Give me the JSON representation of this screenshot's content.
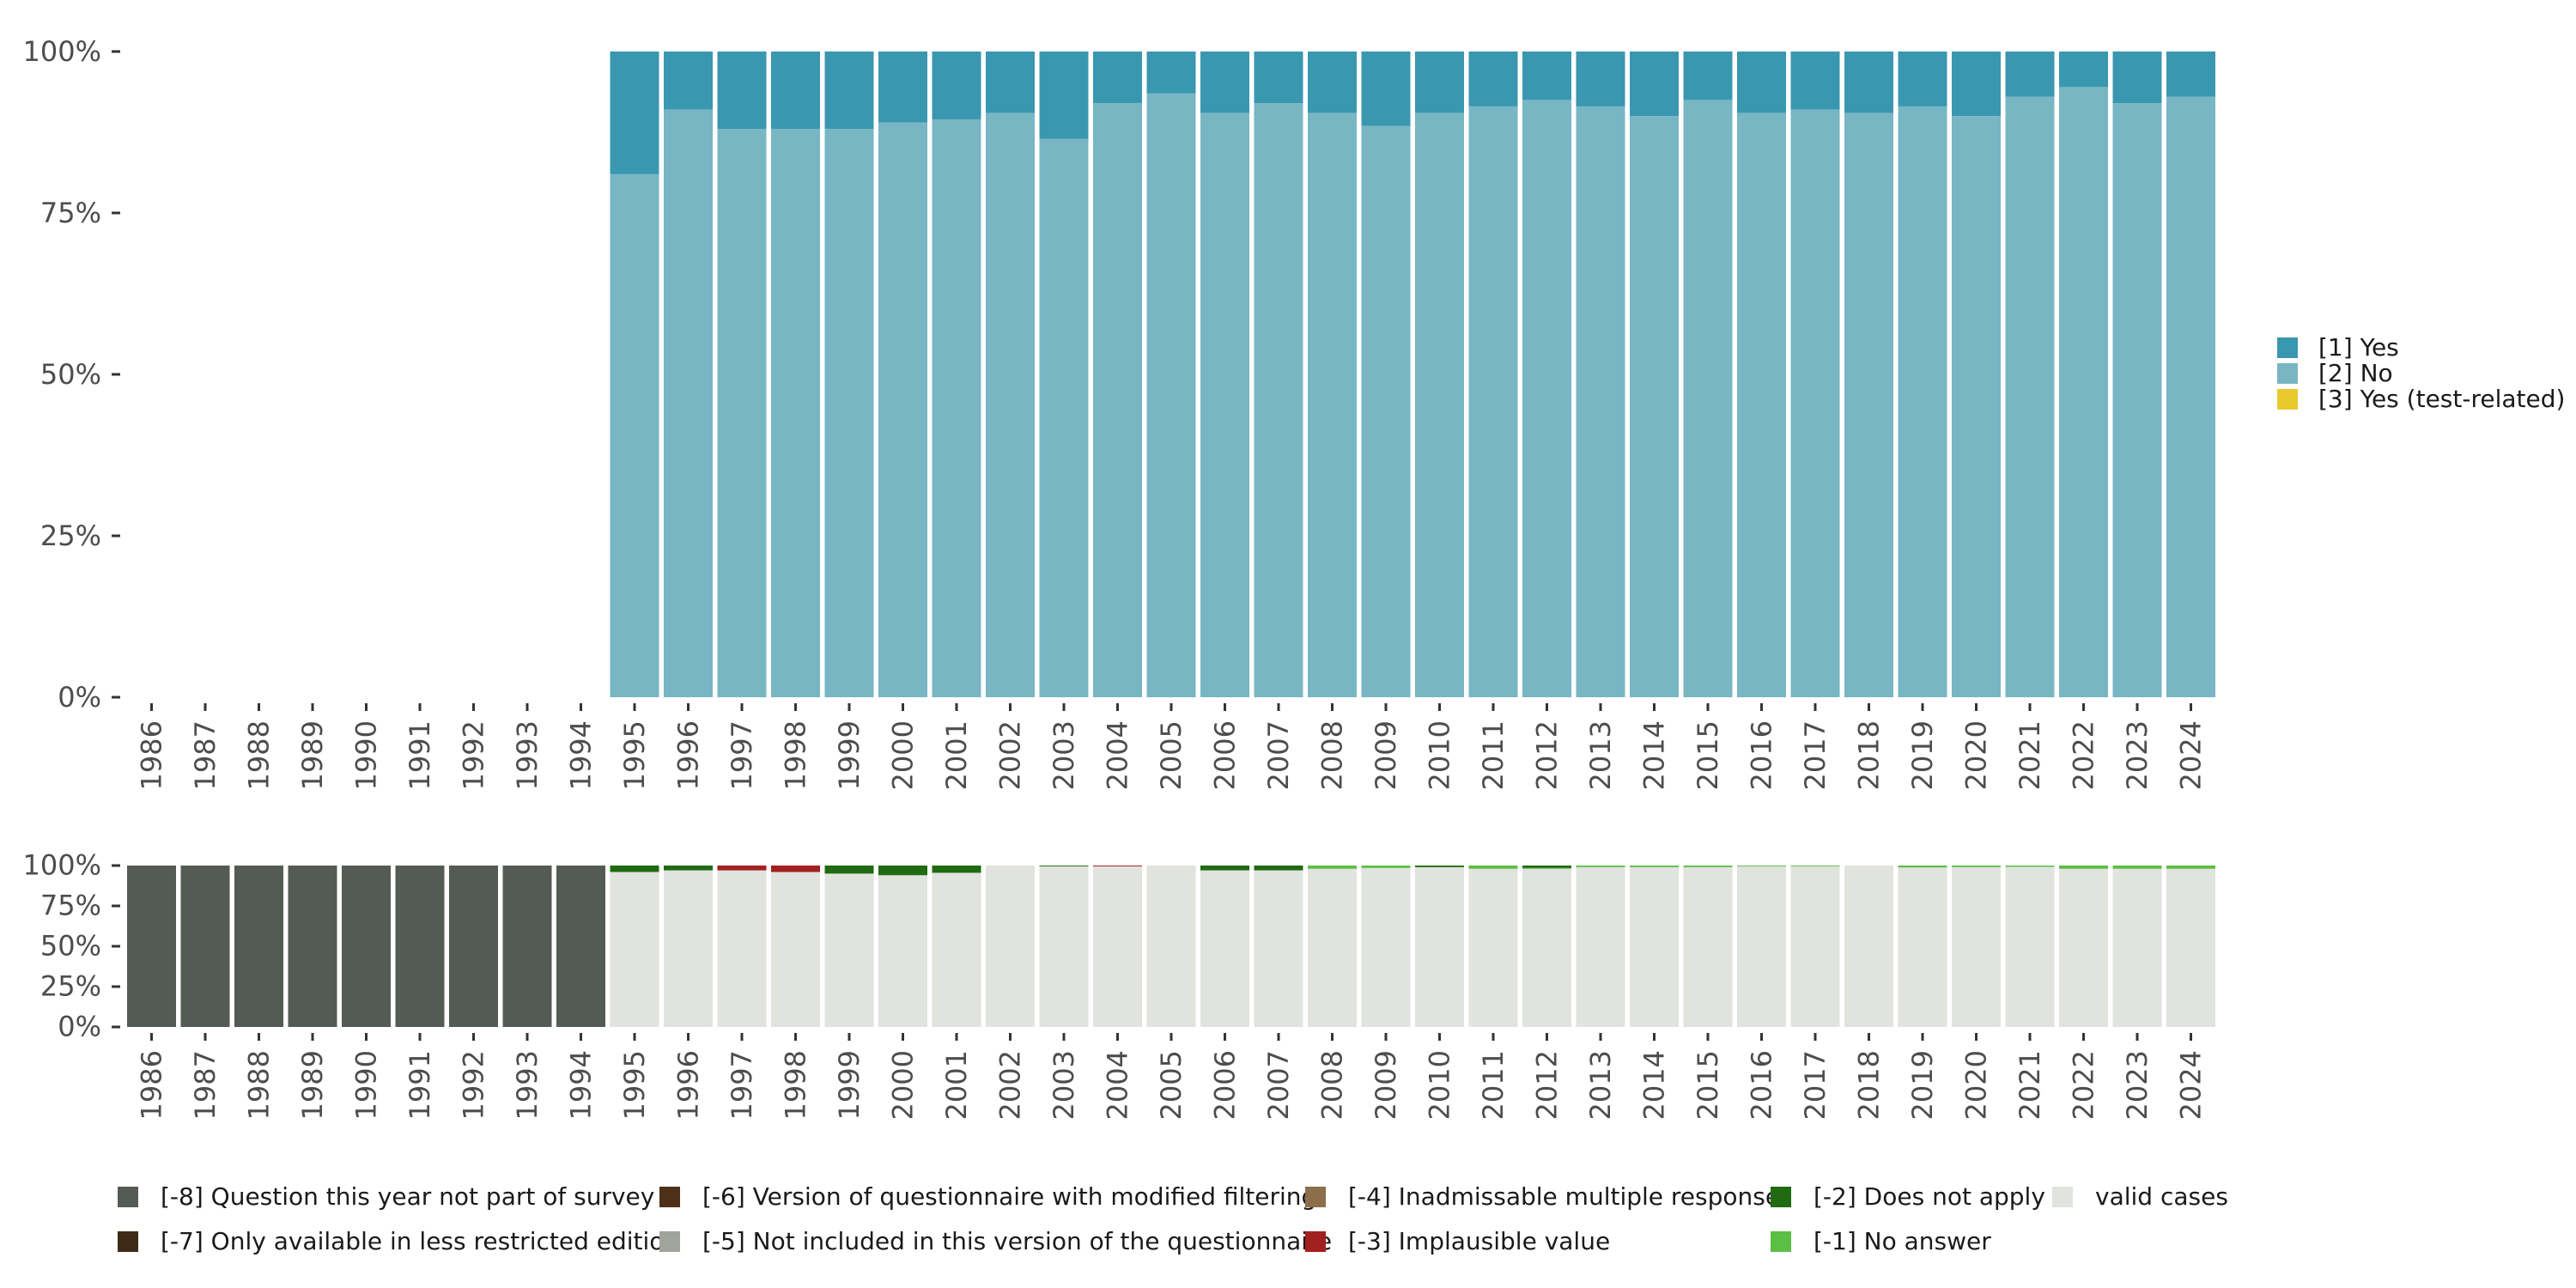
{
  "chart_data": [
    {
      "name": "main",
      "type": "bar",
      "stacked": true,
      "title": "",
      "xlabel": "",
      "ylabel": "",
      "ylim": [
        0,
        100
      ],
      "y_ticks": [
        "0%",
        "25%",
        "50%",
        "75%",
        "100%"
      ],
      "categories": [
        "1986",
        "1987",
        "1988",
        "1989",
        "1990",
        "1991",
        "1992",
        "1993",
        "1994",
        "1995",
        "1996",
        "1997",
        "1998",
        "1999",
        "2000",
        "2001",
        "2002",
        "2003",
        "2004",
        "2005",
        "2006",
        "2007",
        "2008",
        "2009",
        "2010",
        "2011",
        "2012",
        "2013",
        "2014",
        "2015",
        "2016",
        "2017",
        "2018",
        "2019",
        "2020",
        "2021",
        "2022",
        "2023",
        "2024"
      ],
      "series": [
        {
          "name": "[2] No",
          "color": "#78b6c4",
          "values": [
            null,
            null,
            null,
            null,
            null,
            null,
            null,
            null,
            null,
            81,
            91,
            88,
            88,
            88,
            89,
            89.5,
            90.5,
            86.5,
            92,
            93.5,
            90.5,
            92,
            90.5,
            88.5,
            90.5,
            91.5,
            92.5,
            91.5,
            90,
            92.5,
            90.5,
            91,
            90.5,
            91.5,
            90,
            93,
            94.5,
            92,
            93
          ]
        },
        {
          "name": "[1] Yes",
          "color": "#3a97b0",
          "values": [
            null,
            null,
            null,
            null,
            null,
            null,
            null,
            null,
            null,
            19,
            9,
            12,
            12,
            12,
            11,
            10.5,
            9.5,
            13.5,
            8,
            6.5,
            9.5,
            8,
            9.5,
            11.5,
            9.5,
            8.5,
            7.5,
            8.5,
            10,
            7.5,
            9.5,
            9,
            9.5,
            8.5,
            10,
            7,
            5.5,
            8,
            7
          ]
        },
        {
          "name": "[3] Yes (test-related)",
          "color": "#e8c92c",
          "values": [
            null,
            null,
            null,
            null,
            null,
            null,
            null,
            null,
            null,
            0,
            0,
            0,
            0,
            0,
            0,
            0,
            0,
            0,
            0,
            0,
            0,
            0,
            0,
            0,
            0,
            0,
            0,
            0,
            0,
            0,
            0,
            0,
            0,
            0,
            0,
            0,
            0,
            0,
            0
          ]
        }
      ],
      "legend": [
        "[1] Yes",
        "[2] No",
        "[3] Yes (test-related)"
      ],
      "legend_position": "right"
    },
    {
      "name": "missing",
      "type": "bar",
      "stacked": true,
      "title": "",
      "xlabel": "",
      "ylabel": "",
      "ylim": [
        0,
        100
      ],
      "y_ticks": [
        "0%",
        "25%",
        "50%",
        "75%",
        "100%"
      ],
      "categories": [
        "1986",
        "1987",
        "1988",
        "1989",
        "1990",
        "1991",
        "1992",
        "1993",
        "1994",
        "1995",
        "1996",
        "1997",
        "1998",
        "1999",
        "2000",
        "2001",
        "2002",
        "2003",
        "2004",
        "2005",
        "2006",
        "2007",
        "2008",
        "2009",
        "2010",
        "2011",
        "2012",
        "2013",
        "2014",
        "2015",
        "2016",
        "2017",
        "2018",
        "2019",
        "2020",
        "2021",
        "2022",
        "2023",
        "2024"
      ],
      "series": [
        {
          "name": "valid cases",
          "color": "#e0e3de",
          "values": [
            0,
            0,
            0,
            0,
            0,
            0,
            0,
            0,
            0,
            96,
            97,
            97,
            96,
            95,
            94,
            95.5,
            100,
            99.5,
            99.5,
            100,
            97,
            97,
            98,
            98.5,
            99,
            98,
            98,
            99,
            99,
            99,
            99.5,
            99.5,
            100,
            98.8,
            99,
            99.2,
            98,
            98,
            98
          ]
        },
        {
          "name": "[-1] No answer",
          "color": "#5bbf45",
          "values": [
            0,
            0,
            0,
            0,
            0,
            0,
            0,
            0,
            0,
            0,
            0,
            0,
            0,
            0,
            0,
            0,
            0,
            0,
            0,
            0,
            0,
            0,
            2,
            1.5,
            0,
            2,
            0.5,
            1,
            1,
            1,
            0.5,
            0.5,
            0,
            1.2,
            1,
            0.8,
            2,
            2,
            2
          ]
        },
        {
          "name": "[-2] Does not apply",
          "color": "#206a12",
          "values": [
            0,
            0,
            0,
            0,
            0,
            0,
            0,
            0,
            0,
            4,
            3,
            0,
            0,
            5,
            6,
            4.5,
            0,
            0.5,
            0,
            0,
            3,
            3,
            0,
            0,
            1,
            0,
            1.5,
            0,
            0,
            0,
            0,
            0,
            0,
            0,
            0,
            0,
            0,
            0,
            0
          ]
        },
        {
          "name": "[-3] Implausible value",
          "color": "#a32020",
          "values": [
            0,
            0,
            0,
            0,
            0,
            0,
            0,
            0,
            0,
            0,
            0,
            3,
            4,
            0,
            0,
            0,
            0,
            0,
            0.5,
            0,
            0,
            0,
            0,
            0,
            0,
            0,
            0,
            0,
            0,
            0,
            0,
            0,
            0,
            0,
            0,
            0,
            0,
            0,
            0
          ]
        },
        {
          "name": "[-4] Inadmissable multiple response",
          "color": "#8c6f4a",
          "values": [
            0,
            0,
            0,
            0,
            0,
            0,
            0,
            0,
            0,
            0,
            0,
            0,
            0,
            0,
            0,
            0,
            0,
            0,
            0,
            0,
            0,
            0,
            0,
            0,
            0,
            0,
            0,
            0,
            0,
            0,
            0,
            0,
            0,
            0,
            0,
            0,
            0,
            0,
            0
          ]
        },
        {
          "name": "[-5] Not included in this version of the questionnaire",
          "color": "#a0a49c",
          "values": [
            0,
            0,
            0,
            0,
            0,
            0,
            0,
            0,
            0,
            0,
            0,
            0,
            0,
            0,
            0,
            0,
            0,
            0,
            0,
            0,
            0,
            0,
            0,
            0,
            0,
            0,
            0,
            0,
            0,
            0,
            0,
            0,
            0,
            0,
            0,
            0,
            0,
            0,
            0
          ]
        },
        {
          "name": "[-6] Version of questionnaire with modified filtering",
          "color": "#4e3018",
          "values": [
            0,
            0,
            0,
            0,
            0,
            0,
            0,
            0,
            0,
            0,
            0,
            0,
            0,
            0,
            0,
            0,
            0,
            0,
            0,
            0,
            0,
            0,
            0,
            0,
            0,
            0,
            0,
            0,
            0,
            0,
            0,
            0,
            0,
            0,
            0,
            0,
            0,
            0,
            0
          ]
        },
        {
          "name": "[-7] Only available in less restricted edition",
          "color": "#3e2a17",
          "values": [
            0,
            0,
            0,
            0,
            0,
            0,
            0,
            0,
            0,
            0,
            0,
            0,
            0,
            0,
            0,
            0,
            0,
            0,
            0,
            0,
            0,
            0,
            0,
            0,
            0,
            0,
            0,
            0,
            0,
            0,
            0,
            0,
            0,
            0,
            0,
            0,
            0,
            0,
            0
          ]
        },
        {
          "name": "[-8] Question this year not part of survey",
          "color": "#545b54",
          "values": [
            100,
            100,
            100,
            100,
            100,
            100,
            100,
            100,
            100,
            0,
            0,
            0,
            0,
            0,
            0,
            0,
            0,
            0,
            0,
            0,
            0,
            0,
            0,
            0,
            0,
            0,
            0,
            0,
            0,
            0,
            0,
            0,
            0,
            0,
            0,
            0,
            0,
            0,
            0
          ]
        }
      ],
      "legend": [
        "[-8] Question this year not part of survey",
        "[-7] Only available in less restricted edition",
        "[-6] Version of questionnaire with modified filtering",
        "[-5] Not included in this version of the questionnaire",
        "[-4] Inadmissable multiple response",
        "[-3] Implausible value",
        "[-2] Does not apply",
        "[-1] No answer",
        "valid cases"
      ],
      "legend_position": "bottom"
    }
  ]
}
